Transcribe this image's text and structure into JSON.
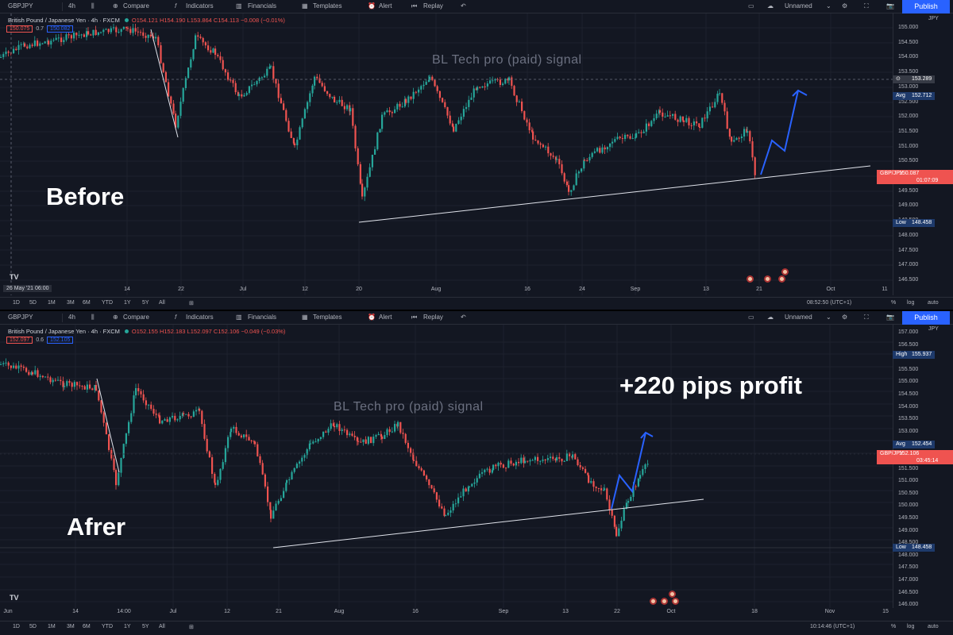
{
  "top": {
    "toolbar": {
      "symbol": "GBPJPY",
      "interval": "4h",
      "compare": "Compare",
      "indicators": "Indicators",
      "financials": "Financials",
      "templates": "Templates",
      "alert": "Alert",
      "replay": "Replay",
      "layout_name": "Unnamed",
      "publish": "Publish"
    },
    "legend": {
      "name": "British Pound / Japanese Yen · 4h · FXCM",
      "ohlc": "O154.121 H154.190 L153.864 C154.113 −0.008 (−0.01%)"
    },
    "pricebox": {
      "sell": "150.075",
      "spread": "0.7",
      "buy": "150.082"
    },
    "overlay_title": "BL Tech pro (paid) signal",
    "big_label": "Before",
    "price_ticks": [
      "155.000",
      "154.500",
      "154.000",
      "153.500",
      "153.000",
      "152.500",
      "152.000",
      "151.500",
      "151.000",
      "150.500",
      "150.000",
      "149.500",
      "149.000",
      "148.500",
      "148.000",
      "147.500",
      "147.000",
      "146.500"
    ],
    "axis_labels": {
      "crosshair": "153.289",
      "avg_tag": "Avg",
      "avg": "152.712",
      "sym_tag": "GBP/JPY",
      "last": "150.087",
      "last_time": "01:07:09",
      "low_tag": "Low",
      "low": "148.458",
      "currency": "JPY"
    },
    "time_ticks": [
      "14",
      "22",
      "Jul",
      "12",
      "20",
      "Aug",
      "16",
      "24",
      "Sep",
      "13",
      "21",
      "Oct",
      "11"
    ],
    "date_flag": "26 May '21   06:00",
    "ranges": [
      "1D",
      "5D",
      "1M",
      "3M",
      "6M",
      "YTD",
      "1Y",
      "5Y",
      "All"
    ],
    "clock": "08:52:50 (UTC+1)",
    "scale_opts": [
      "%",
      "log",
      "auto"
    ]
  },
  "bottom": {
    "toolbar": {
      "symbol": "GBPJPY",
      "interval": "4h",
      "compare": "Compare",
      "indicators": "Indicators",
      "financials": "Financials",
      "templates": "Templates",
      "alert": "Alert",
      "replay": "Replay",
      "layout_name": "Unnamed",
      "publish": "Publish"
    },
    "legend": {
      "name": "British Pound / Japanese Yen · 4h · FXCM",
      "ohlc": "O152.155 H152.183 L152.097 C152.106 −0.049 (−0.03%)"
    },
    "pricebox": {
      "sell": "152.097",
      "spread": "0.6",
      "buy": "152.105"
    },
    "overlay_title": "BL Tech pro (paid) signal",
    "big_label": "Afrer",
    "profit_label": "+220 pips profit",
    "price_ticks": [
      "157.000",
      "156.500",
      "156.000",
      "155.500",
      "155.000",
      "154.500",
      "154.000",
      "153.500",
      "153.000",
      "152.500",
      "152.000",
      "151.500",
      "151.000",
      "150.500",
      "150.000",
      "149.500",
      "149.000",
      "148.500",
      "148.000",
      "147.500",
      "147.000",
      "146.500",
      "146.000"
    ],
    "axis_labels": {
      "high_tag": "High",
      "high": "155.937",
      "avg_tag": "Avg",
      "avg": "152.454",
      "sym_tag": "GBP/JPY",
      "last": "152.106",
      "last_time": "03:45:14",
      "low_tag": "Low",
      "low": "148.458",
      "currency": "JPY"
    },
    "time_ticks": [
      "Jun",
      "14",
      "14:00",
      "Jul",
      "12",
      "21",
      "Aug",
      "16",
      "Sep",
      "13",
      "22",
      "Oct",
      "18",
      "Nov",
      "15"
    ],
    "ranges": [
      "1D",
      "5D",
      "1M",
      "3M",
      "6M",
      "YTD",
      "1Y",
      "5Y",
      "All"
    ],
    "clock": "10:14:46 (UTC+1)",
    "scale_opts": [
      "%",
      "log",
      "auto"
    ]
  },
  "colors": {
    "up": "#26a69a",
    "down": "#ef5350",
    "accent": "#2962ff",
    "background": "#131722"
  },
  "icons": [
    "tradingview-logo-icon",
    "compare-plus-icon",
    "indicators-fx-icon",
    "financials-icon",
    "templates-icon",
    "alert-clock-icon",
    "replay-icon",
    "undo-icon",
    "fullscreen-icon",
    "cloud-icon",
    "settings-gear-icon",
    "camera-snapshot-icon",
    "earnings-event-icon"
  ]
}
